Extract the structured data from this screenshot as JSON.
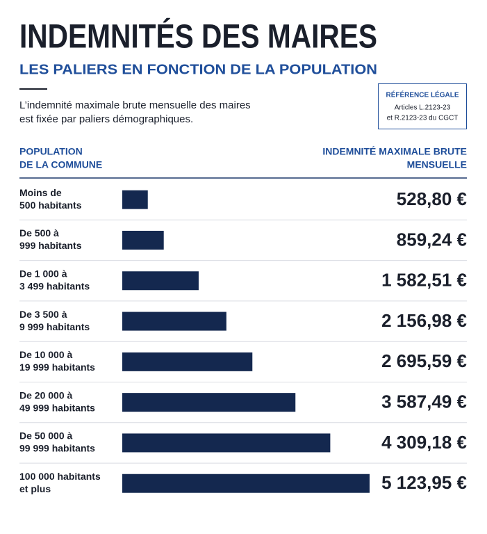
{
  "chart_data": {
    "type": "bar",
    "orientation": "horizontal",
    "title": "INDEMNITÉS DES MAIRES",
    "subtitle": "LES PALIERS EN FONCTION DE LA POPULATION",
    "description": [
      "L’indemnité maximale brute mensuelle des maires",
      "est fixée par paliers démographiques."
    ],
    "reference": {
      "title": "RÉFÉRENCE LÉGALE",
      "lines": [
        "Articles L.2123-23",
        "et R.2123-23 du CGCT"
      ]
    },
    "header": {
      "left": [
        "POPULATION",
        "DE LA COMMUNE"
      ],
      "right": [
        "INDEMNITÉ MAXIMALE BRUTE",
        "MENSUELLE"
      ]
    },
    "categories": [
      [
        "Moins de",
        "500 habitants"
      ],
      [
        "De 500 à",
        "999 habitants"
      ],
      [
        "De 1 000 à",
        "3 499 habitants"
      ],
      [
        "De 3 500 à",
        "9 999 habitants"
      ],
      [
        "De 10 000 à",
        "19 999 habitants"
      ],
      [
        "De 20 000 à",
        "49 999 habitants"
      ],
      [
        "De 50 000 à",
        "99 999 habitants"
      ],
      [
        "100 000 habitants",
        "et plus"
      ]
    ],
    "values": [
      528.8,
      859.24,
      1582.51,
      2156.98,
      2695.59,
      3587.49,
      4309.18,
      5123.95
    ],
    "value_labels": [
      "528,80 €",
      "859,24 €",
      "1 582,51 €",
      "2 156,98 €",
      "2 695,59 €",
      "3 587,49 €",
      "4 309,18 €",
      "5 123,95 €"
    ],
    "color": "#14284f"
  }
}
